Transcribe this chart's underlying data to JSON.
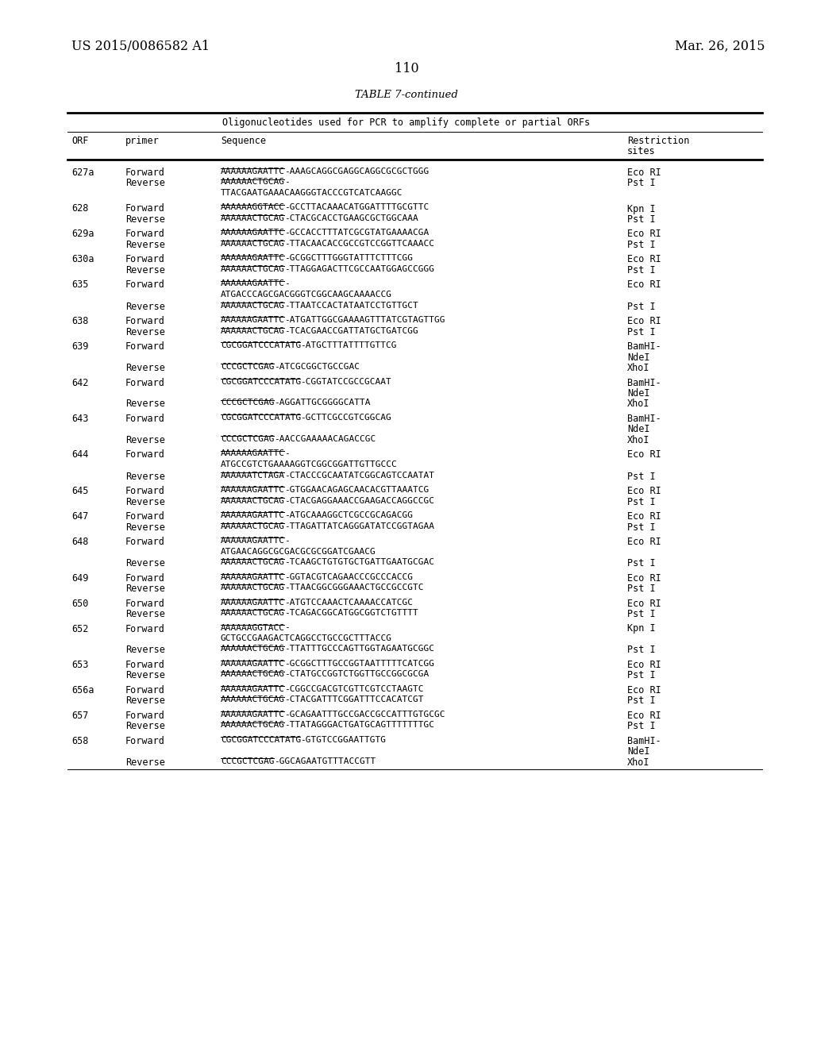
{
  "header_left": "US 2015/0086582 A1",
  "header_right": "Mar. 26, 2015",
  "page_number": "110",
  "table_title": "TABLE 7-continued",
  "table_subtitle": "Oligonucleotides used for PCR to amplify complete or partial ORFs",
  "rows": [
    {
      "orf": "627a",
      "primer": "Forward",
      "seq1": "AAAAAAGAATTC-AAAGCAGGCGAGGCAGGCGCGCTGGG",
      "seq2": "",
      "restriction": [
        "Eco RI"
      ]
    },
    {
      "orf": "",
      "primer": "Reverse",
      "seq1": "AAAAAACTGCAG-",
      "seq2": "TTACGAATGAAACAAGGGTACCCGTCATCAAGGC",
      "restriction": [
        "Pst I"
      ]
    },
    {
      "orf": "628",
      "primer": "Forward",
      "seq1": "AAAAAAGGTACC-GCCTTACAAACATGGATTTTGCGTTC",
      "seq2": "",
      "restriction": [
        "Kpn I"
      ]
    },
    {
      "orf": "",
      "primer": "Reverse",
      "seq1": "AAAAAACTGCAG-CTACGCACCTGAAGCGCTGGCAAA",
      "seq2": "",
      "restriction": [
        "Pst I"
      ]
    },
    {
      "orf": "629a",
      "primer": "Forward",
      "seq1": "AAAAAAGAATTC-GCCACCTTTATCGCGTATGAAAACGA",
      "seq2": "",
      "restriction": [
        "Eco RI"
      ]
    },
    {
      "orf": "",
      "primer": "Reverse",
      "seq1": "AAAAAACTGCAG-TTACAACACCGCCGTCCGGTTCAAACC",
      "seq2": "",
      "restriction": [
        "Pst I"
      ]
    },
    {
      "orf": "630a",
      "primer": "Forward",
      "seq1": "AAAAAAGAATTC-GCGGCTTTGGGTATTTCTTTCGG",
      "seq2": "",
      "restriction": [
        "Eco RI"
      ]
    },
    {
      "orf": "",
      "primer": "Reverse",
      "seq1": "AAAAAACTGCAG-TTAGGAGACTTCGCCAATGGAGCCGGG",
      "seq2": "",
      "restriction": [
        "Pst I"
      ]
    },
    {
      "orf": "635",
      "primer": "Forward",
      "seq1": "AAAAAAGAATTC-",
      "seq2": "ATGACCCAGCGACGGGTCGGCAAGCAAAACCG",
      "restriction": [
        "Eco RI"
      ]
    },
    {
      "orf": "",
      "primer": "Reverse",
      "seq1": "AAAAAACTGCAG-TTAATCCACTATAATCCTGTTGCT",
      "seq2": "",
      "restriction": [
        "Pst I"
      ]
    },
    {
      "orf": "638",
      "primer": "Forward",
      "seq1": "AAAAAAGAATTC-ATGATTGGCGAAAAGTTTATCGTAGTTGG",
      "seq2": "",
      "restriction": [
        "Eco RI"
      ]
    },
    {
      "orf": "",
      "primer": "Reverse",
      "seq1": "AAAAAACTGCAG-TCACGAACCGATTATGCTGATCGG",
      "seq2": "",
      "restriction": [
        "Pst I"
      ]
    },
    {
      "orf": "639",
      "primer": "Forward",
      "seq1": "CGCGGATCCCATATG-ATGCTTTATTTTGTTCG",
      "seq2": "",
      "restriction": [
        "BamHI-",
        "NdeI"
      ]
    },
    {
      "orf": "",
      "primer": "Reverse",
      "seq1": "CCCGCTCGAG-ATCGCGGCTGCCGAC",
      "seq2": "",
      "restriction": [
        "XhoI"
      ]
    },
    {
      "orf": "642",
      "primer": "Forward",
      "seq1": "CGCGGATCCCATATG-CGGTATCCGCCGCAAT",
      "seq2": "",
      "restriction": [
        "BamHI-",
        "NdeI"
      ]
    },
    {
      "orf": "",
      "primer": "Reverse",
      "seq1": "CCCGCTCGAG-AGGATTGCGGGGCATTA",
      "seq2": "",
      "restriction": [
        "XhoI"
      ]
    },
    {
      "orf": "643",
      "primer": "Forward",
      "seq1": "CGCGGATCCCATATG-GCTTCGCCGTCGGCAG",
      "seq2": "",
      "restriction": [
        "BamHI-",
        "NdeI"
      ]
    },
    {
      "orf": "",
      "primer": "Reverse",
      "seq1": "CCCGCTCGAG-AACCGAAAAACAGACCGC",
      "seq2": "",
      "restriction": [
        "XhoI"
      ]
    },
    {
      "orf": "644",
      "primer": "Forward",
      "seq1": "AAAAAAGAATTC-",
      "seq2": "ATGCCGTCTGAAAAGGTCGGCGGATTGTTGCCC",
      "restriction": [
        "Eco RI"
      ]
    },
    {
      "orf": "",
      "primer": "Reverse",
      "seq1": "AAAAAATCTAGA-CTACCCGCAATATCGGCAGTCCAATAT",
      "seq2": "",
      "restriction": [
        "Pst I"
      ]
    },
    {
      "orf": "645",
      "primer": "Forward",
      "seq1": "AAAAAAGAATTC-GTGGAACAGAGCAACACGTTAAATCG",
      "seq2": "",
      "restriction": [
        "Eco RI"
      ]
    },
    {
      "orf": "",
      "primer": "Reverse",
      "seq1": "AAAAAACTGCAG-CTACGAGGAAACCGAAGACCAGGCCGC",
      "seq2": "",
      "restriction": [
        "Pst I"
      ]
    },
    {
      "orf": "647",
      "primer": "Forward",
      "seq1": "AAAAAAGAATTC-ATGCAAAGGCTCGCCGCAGACGG",
      "seq2": "",
      "restriction": [
        "Eco RI"
      ]
    },
    {
      "orf": "",
      "primer": "Reverse",
      "seq1": "AAAAAACTGCAG-TTAGATTATCAGGGATATCCGGTAGAA",
      "seq2": "",
      "restriction": [
        "Pst I"
      ]
    },
    {
      "orf": "648",
      "primer": "Forward",
      "seq1": "AAAAAAGAATTC-",
      "seq2": "ATGAACAGGCGCGACGCGCGGATCGAACG",
      "restriction": [
        "Eco RI"
      ]
    },
    {
      "orf": "",
      "primer": "Reverse",
      "seq1": "AAAAAACTGCAG-TCAAGCTGTGTGCTGATTGAATGCGAC",
      "seq2": "",
      "restriction": [
        "Pst I"
      ]
    },
    {
      "orf": "649",
      "primer": "Forward",
      "seq1": "AAAAAAGAATTC-GGTACGTCAGAACCCGCCCACCG",
      "seq2": "",
      "restriction": [
        "Eco RI"
      ]
    },
    {
      "orf": "",
      "primer": "Reverse",
      "seq1": "AAAAAACTGCAG-TTAACGGCGGGAAACTGCCGCCGTC",
      "seq2": "",
      "restriction": [
        "Pst I"
      ]
    },
    {
      "orf": "650",
      "primer": "Forward",
      "seq1": "AAAAAAGAATTC-ATGTCCAAACTCAAAACCATCGC",
      "seq2": "",
      "restriction": [
        "Eco RI"
      ]
    },
    {
      "orf": "",
      "primer": "Reverse",
      "seq1": "AAAAAACTGCAG-TCAGACGGCATGGCGGTCTGTTTT",
      "seq2": "",
      "restriction": [
        "Pst I"
      ]
    },
    {
      "orf": "652",
      "primer": "Forward",
      "seq1": "AAAAAAGGTACC-",
      "seq2": "GCTGCCGAAGACTCAGGCCTGCCGCTTTACCG",
      "restriction": [
        "Kpn I"
      ]
    },
    {
      "orf": "",
      "primer": "Reverse",
      "seq1": "AAAAAACTGCAG-TTATTTGCCCAGTTGGTAGAATGCGGC",
      "seq2": "",
      "restriction": [
        "Pst I"
      ]
    },
    {
      "orf": "653",
      "primer": "Forward",
      "seq1": "AAAAAAGAATTC-GCGGCTTTGCCGGTAATTTTTCATCGG",
      "seq2": "",
      "restriction": [
        "Eco RI"
      ]
    },
    {
      "orf": "",
      "primer": "Reverse",
      "seq1": "AAAAAACTGCAG-CTATGCCGGTCTGGTTGCCGGCGCGA",
      "seq2": "",
      "restriction": [
        "Pst I"
      ]
    },
    {
      "orf": "656a",
      "primer": "Forward",
      "seq1": "AAAAAAGAATTC-CGGCCGACGTCGTTCGTCCTAAGTC",
      "seq2": "",
      "restriction": [
        "Eco RI"
      ]
    },
    {
      "orf": "",
      "primer": "Reverse",
      "seq1": "AAAAAACTGCAG-CTACGATTTCGGATTTCCACATCGT",
      "seq2": "",
      "restriction": [
        "Pst I"
      ]
    },
    {
      "orf": "657",
      "primer": "Forward",
      "seq1": "AAAAAAGAATTC-GCAGAATTTGCCGACCGCCATTTGTGCGC",
      "seq2": "",
      "restriction": [
        "Eco RI"
      ]
    },
    {
      "orf": "",
      "primer": "Reverse",
      "seq1": "AAAAAACTGCAG-TTATAGGGACTGATGCAGTTTTTTTGC",
      "seq2": "",
      "restriction": [
        "Pst I"
      ]
    },
    {
      "orf": "658",
      "primer": "Forward",
      "seq1": "CGCGGATCCCATATG-GTGTCCGGAATTGTG",
      "seq2": "",
      "restriction": [
        "BamHI-",
        "NdeI"
      ]
    },
    {
      "orf": "",
      "primer": "Reverse",
      "seq1": "CCCGCTCGAG-GGCAGAATGTTTACCGTT",
      "seq2": "",
      "restriction": [
        "XhoI"
      ]
    }
  ]
}
